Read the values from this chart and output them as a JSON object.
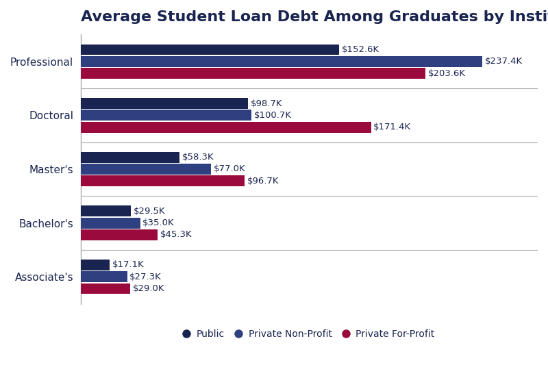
{
  "title": "Average Student Loan Debt Among Graduates by Institution Type",
  "categories": [
    "Associate's",
    "Bachelor's",
    "Master's",
    "Doctoral",
    "Professional"
  ],
  "series": [
    {
      "label": "Public",
      "color": "#1a2450",
      "values": [
        17.1,
        29.5,
        58.3,
        98.7,
        152.6
      ]
    },
    {
      "label": "Private Non-Profit",
      "color": "#2e4080",
      "values": [
        27.3,
        35.0,
        77.0,
        100.7,
        237.4
      ]
    },
    {
      "label": "Private For-Profit",
      "color": "#9b0a3c",
      "values": [
        29.0,
        45.3,
        96.7,
        171.4,
        203.6
      ]
    }
  ],
  "bar_height": 0.22,
  "background_color": "#ffffff",
  "title_fontsize": 16,
  "label_fontsize": 9.5,
  "tick_fontsize": 11,
  "legend_fontsize": 10,
  "title_color": "#1a2450",
  "axis_label_color": "#1a2450",
  "value_label_color": "#1a2450",
  "xlim": 270
}
